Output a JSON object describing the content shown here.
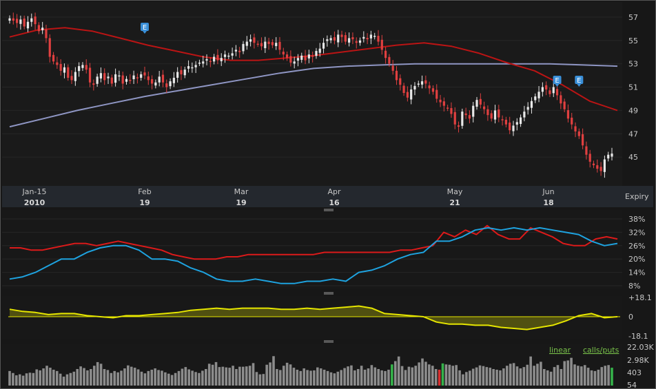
{
  "chart_data": [
    {
      "type": "candlestick",
      "title": "",
      "ylim": [
        43,
        58
      ],
      "y_ticks": [
        "57",
        "55",
        "53",
        "51",
        "49",
        "47",
        "45"
      ],
      "x_ticks": [
        {
          "month": "Jan-15",
          "day": "2010"
        },
        {
          "month": "Feb",
          "day": "19"
        },
        {
          "month": "Mar",
          "day": "19"
        },
        {
          "month": "Apr",
          "day": "16"
        },
        {
          "month": "May",
          "day": "21"
        },
        {
          "month": "Jun",
          "day": "18"
        }
      ],
      "expiry_label": "Expiry",
      "closes": [
        56.9,
        56.7,
        56.5,
        56.8,
        56.2,
        56.6,
        56.9,
        56.4,
        55.8,
        56.1,
        55.2,
        53.6,
        53.2,
        52.9,
        52.4,
        52.7,
        51.8,
        51.6,
        52.3,
        52.8,
        52.9,
        52.5,
        51.4,
        51.2,
        51.9,
        52.2,
        51.6,
        51.9,
        51.3,
        52.1,
        52.0,
        51.3,
        51.7,
        51.6,
        52.0,
        51.8,
        52.1,
        52.0,
        51.6,
        51.3,
        51.4,
        51.9,
        51.4,
        51.0,
        51.5,
        51.8,
        52.3,
        52.1,
        52.5,
        52.8,
        52.7,
        52.9,
        53.1,
        53.2,
        53.4,
        53.2,
        53.6,
        53.3,
        53.5,
        53.8,
        53.7,
        53.9,
        54.2,
        54.0,
        54.7,
        54.9,
        55.1,
        54.8,
        54.7,
        54.5,
        54.9,
        54.7,
        54.6,
        54.8,
        54.2,
        53.8,
        53.5,
        53.1,
        53.2,
        53.5,
        53.7,
        53.3,
        53.8,
        53.6,
        54.1,
        54.3,
        54.8,
        55.1,
        55.2,
        55.0,
        55.5,
        55.3,
        54.9,
        55.2,
        55.1,
        54.8,
        55.0,
        55.3,
        55.1,
        55.5,
        55.4,
        54.9,
        54.2,
        53.5,
        53.0,
        52.4,
        51.6,
        51.2,
        50.5,
        50.1,
        50.8,
        51.1,
        51.3,
        51.5,
        51.3,
        50.9,
        50.6,
        50.0,
        49.7,
        49.4,
        49.2,
        48.7,
        47.8,
        47.6,
        48.9,
        48.6,
        48.3,
        49.4,
        49.9,
        49.5,
        49.1,
        48.6,
        48.3,
        49.0,
        48.4,
        48.2,
        47.8,
        47.3,
        47.7,
        48.0,
        48.4,
        48.9,
        49.3,
        49.8,
        50.2,
        50.6,
        51.0,
        50.8,
        50.4,
        51.0,
        50.3,
        49.6,
        49.1,
        48.3,
        47.8,
        47.2,
        46.8,
        46.0,
        45.2,
        44.6,
        44.3,
        44.0,
        43.8,
        44.8,
        45.2,
        45.3
      ],
      "ma_short": [
        55.3,
        55.9,
        56.1,
        55.8,
        55.2,
        54.6,
        54.1,
        53.6,
        53.3,
        53.3,
        53.5,
        53.7,
        54.0,
        54.3,
        54.6,
        54.8,
        54.5,
        53.9,
        53.1,
        52.4,
        51.2,
        49.8,
        49.0
      ],
      "ma_long": [
        47.6,
        48.3,
        49.0,
        49.6,
        50.2,
        50.7,
        51.2,
        51.7,
        52.2,
        52.6,
        52.8,
        52.9,
        53.0,
        53.0,
        53.0,
        53.0,
        53.0,
        52.9,
        52.8
      ],
      "earnings_markers": [
        "E",
        "E",
        "E"
      ]
    },
    {
      "type": "line",
      "y_ticks": [
        "38%",
        "32%",
        "26%",
        "20%",
        "14%",
        "8%"
      ],
      "ylim": [
        8,
        38
      ],
      "series": [
        {
          "color": "#dd1a1a",
          "values": [
            25,
            25,
            24,
            24,
            25,
            26,
            27,
            27,
            26,
            27,
            28,
            27,
            26,
            25,
            24,
            22,
            21,
            20,
            20,
            20,
            21,
            21,
            22,
            22,
            22,
            22,
            22,
            22,
            22,
            23,
            23,
            23,
            23,
            23,
            23,
            23,
            24,
            24,
            25,
            26,
            32,
            30,
            33,
            31,
            35,
            31,
            29,
            29,
            34,
            32,
            30,
            27,
            26,
            26,
            29,
            30,
            29
          ]
        },
        {
          "color": "#1ea3e0",
          "values": [
            11,
            12,
            14,
            17,
            20,
            20,
            23,
            25,
            26,
            26,
            24,
            20,
            20,
            19,
            16,
            14,
            11,
            10,
            10,
            11,
            10,
            9,
            9,
            10,
            10,
            11,
            10,
            14,
            15,
            17,
            20,
            22,
            23,
            28,
            28,
            30,
            33,
            34,
            33,
            34,
            33,
            34,
            33,
            32,
            31,
            28,
            26,
            27
          ]
        }
      ]
    },
    {
      "type": "area",
      "y_ticks": [
        "+18.1",
        "0",
        "-18.1"
      ],
      "ylim": [
        -18.1,
        18.1
      ],
      "series": [
        {
          "color": "#e6e600",
          "values": [
            7,
            5,
            4,
            2,
            3,
            3,
            1,
            0,
            -1,
            1,
            1,
            2,
            3,
            4,
            6,
            7,
            8,
            7,
            8,
            8,
            8,
            7,
            7,
            8,
            7,
            8,
            9,
            10,
            8,
            3,
            2,
            1,
            0,
            -5,
            -7,
            -7,
            -8,
            -8,
            -10,
            -11,
            -12,
            -10,
            -8,
            -4,
            1,
            3,
            -1,
            0
          ]
        }
      ]
    },
    {
      "type": "bar",
      "y_ticks": [
        "22.03K",
        "2.98K",
        "403",
        "54"
      ],
      "legend_links": [
        "linear",
        "calls/puts"
      ],
      "bar_heights_pct": [
        44,
        38,
        31,
        34,
        30,
        37,
        39,
        38,
        49,
        46,
        52,
        60,
        54,
        48,
        44,
        36,
        27,
        34,
        38,
        42,
        50,
        58,
        53,
        46,
        50,
        60,
        71,
        66,
        50,
        47,
        38,
        44,
        40,
        45,
        52,
        61,
        57,
        54,
        49,
        42,
        37,
        44,
        48,
        52,
        47,
        45,
        40,
        36,
        32,
        38,
        44,
        51,
        56,
        49,
        45,
        41,
        38,
        45,
        50,
        66,
        63,
        71,
        56,
        57,
        55,
        54,
        60,
        50,
        57,
        57,
        58,
        60,
        68,
        41,
        34,
        35,
        63,
        70,
        89,
        50,
        47,
        60,
        69,
        64,
        54,
        48,
        44,
        52,
        47,
        45,
        46,
        55,
        52,
        48,
        44,
        40,
        37,
        42,
        47,
        53,
        58,
        61,
        46,
        50,
        60,
        48,
        52,
        62,
        55,
        50,
        46,
        44,
        48,
        64,
        74,
        88,
        59,
        47,
        57,
        55,
        60,
        70,
        82,
        72,
        64,
        60,
        50,
        48,
        67,
        64,
        63,
        60,
        62,
        46,
        34,
        41,
        45,
        51,
        55,
        61,
        59,
        56,
        54,
        50,
        48,
        46,
        52,
        60,
        66,
        68,
        58,
        52,
        56,
        63,
        88,
        60,
        66,
        72,
        50,
        46,
        42,
        56,
        62,
        50,
        74,
        76,
        84,
        64,
        60,
        58,
        62,
        54,
        46,
        44,
        48,
        56,
        60,
        62,
        54
      ],
      "highlight_bars": [
        {
          "index": 113,
          "color": "green"
        },
        {
          "index": 127,
          "color": "red"
        },
        {
          "index": 128,
          "color": "green"
        },
        {
          "index": 178,
          "color": "green"
        }
      ]
    }
  ],
  "colors": {
    "background": "#171717",
    "candle_up": "#e8e8e8",
    "candle_down": "#e04040",
    "ma_short": "#bb1414",
    "ma_long": "#8f96c4",
    "earnings": "#3a8fd8",
    "volume": "#8c8c8c",
    "volume_green": "#35b24a",
    "volume_red": "#d83030",
    "link_green": "#79c24a"
  }
}
